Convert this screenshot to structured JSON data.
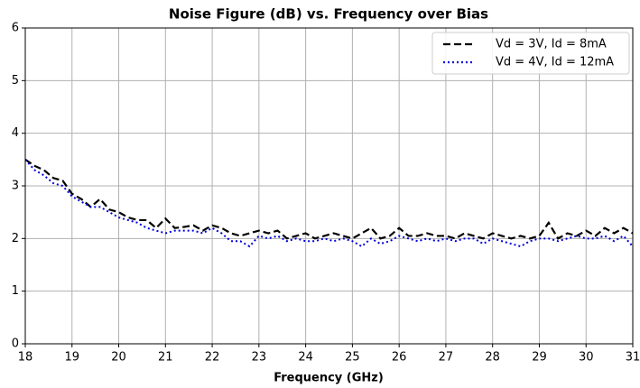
{
  "chart_data": {
    "type": "line",
    "title": "Noise Figure (dB) vs. Frequency over Bias",
    "x_label": "Frequency (GHz)",
    "x": [
      18.0,
      18.2,
      18.4,
      18.6,
      18.8,
      19.0,
      19.2,
      19.4,
      19.6,
      19.8,
      20.0,
      20.2,
      20.4,
      20.6,
      20.8,
      21.0,
      21.2,
      21.4,
      21.6,
      21.8,
      22.0,
      22.2,
      22.4,
      22.6,
      22.8,
      23.0,
      23.2,
      23.4,
      23.6,
      23.8,
      24.0,
      24.2,
      24.4,
      24.6,
      24.8,
      25.0,
      25.2,
      25.4,
      25.6,
      25.8,
      26.0,
      26.2,
      26.4,
      26.6,
      26.8,
      27.0,
      27.2,
      27.4,
      27.6,
      27.8,
      28.0,
      28.2,
      28.4,
      28.6,
      28.8,
      29.0,
      29.2,
      29.4,
      29.6,
      29.8,
      30.0,
      30.2,
      30.4,
      30.6,
      30.8,
      31.0
    ],
    "series": [
      {
        "name": "Vd = 3V, Id = 8mA",
        "color": "#000000",
        "dash": "dashed",
        "values": [
          3.5,
          3.38,
          3.3,
          3.15,
          3.1,
          2.85,
          2.75,
          2.6,
          2.75,
          2.55,
          2.5,
          2.4,
          2.35,
          2.35,
          2.2,
          2.38,
          2.2,
          2.22,
          2.25,
          2.15,
          2.25,
          2.2,
          2.1,
          2.05,
          2.1,
          2.15,
          2.1,
          2.15,
          2.0,
          2.05,
          2.1,
          2.0,
          2.05,
          2.1,
          2.05,
          2.0,
          2.1,
          2.2,
          2.0,
          2.05,
          2.2,
          2.05,
          2.05,
          2.1,
          2.05,
          2.05,
          2.0,
          2.1,
          2.05,
          2.0,
          2.1,
          2.05,
          2.0,
          2.05,
          2.0,
          2.05,
          2.3,
          2.0,
          2.1,
          2.05,
          2.15,
          2.05,
          2.2,
          2.1,
          2.2,
          2.1
        ]
      },
      {
        "name": "Vd = 4V, Id = 12mA",
        "color": "#0000dd",
        "dash": "dotted",
        "values": [
          3.5,
          3.3,
          3.2,
          3.05,
          3.0,
          2.8,
          2.7,
          2.6,
          2.6,
          2.5,
          2.4,
          2.35,
          2.3,
          2.2,
          2.15,
          2.1,
          2.15,
          2.15,
          2.15,
          2.1,
          2.2,
          2.1,
          1.95,
          1.95,
          1.85,
          2.05,
          2.0,
          2.05,
          1.95,
          2.0,
          1.95,
          1.95,
          2.0,
          1.95,
          2.0,
          1.95,
          1.85,
          2.0,
          1.9,
          1.95,
          2.05,
          2.0,
          1.95,
          2.0,
          1.95,
          2.0,
          1.95,
          2.0,
          2.0,
          1.9,
          2.0,
          1.95,
          1.9,
          1.85,
          1.95,
          2.0,
          2.0,
          1.95,
          2.0,
          2.05,
          2.0,
          2.0,
          2.05,
          1.95,
          2.05,
          1.85
        ]
      }
    ],
    "xlim": [
      18,
      31
    ],
    "xticks": [
      18,
      19,
      20,
      21,
      22,
      23,
      24,
      25,
      26,
      27,
      28,
      29,
      30,
      31
    ],
    "ylim": [
      0,
      6
    ],
    "yticks": [
      0,
      1,
      2,
      3,
      4,
      5,
      6
    ],
    "grid": true,
    "legend": "upper right"
  }
}
